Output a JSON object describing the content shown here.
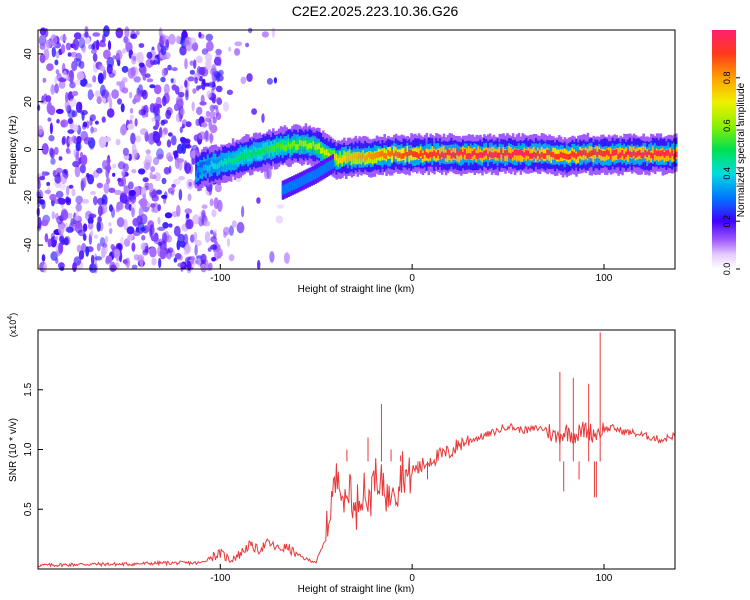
{
  "title": "C2E2.2025.223.10.36.G26",
  "chart_data": [
    {
      "type": "heatmap",
      "xlabel": "Height of straight line (km)",
      "ylabel": "Frequency (Hz)",
      "xlim": [
        -195,
        137
      ],
      "ylim": [
        -50,
        50
      ],
      "x_ticks": [
        -100,
        0,
        100
      ],
      "y_ticks": [
        -40,
        -20,
        0,
        20,
        40
      ],
      "colorbar": {
        "label": "Normalized spectral amplitude",
        "range": [
          0,
          1
        ],
        "ticks": [
          0.0,
          0.2,
          0.4,
          0.6,
          0.8
        ],
        "colors": [
          "#ffffff",
          "#d7b4ff",
          "#7a3ff5",
          "#2b00ff",
          "#0078ff",
          "#00e2e2",
          "#00e060",
          "#9af000",
          "#f0f000",
          "#ff9a00",
          "#ff2020",
          "#ff2070"
        ]
      },
      "ridge": [
        {
          "x": -113,
          "freq": -9,
          "amp": 0.3
        },
        {
          "x": -107,
          "freq": -7,
          "amp": 0.38
        },
        {
          "x": -100,
          "freq": -6,
          "amp": 0.42
        },
        {
          "x": -90,
          "freq": -3,
          "amp": 0.48
        },
        {
          "x": -80,
          "freq": -1,
          "amp": 0.5
        },
        {
          "x": -70,
          "freq": 1,
          "amp": 0.55
        },
        {
          "x": -60,
          "freq": 2,
          "amp": 0.6
        },
        {
          "x": -52,
          "freq": 2,
          "amp": 0.62
        },
        {
          "x": -46,
          "freq": -1,
          "amp": 0.66
        },
        {
          "x": -40,
          "freq": -4,
          "amp": 0.72
        },
        {
          "x": -30,
          "freq": -3,
          "amp": 0.78
        },
        {
          "x": -20,
          "freq": -3,
          "amp": 0.82
        },
        {
          "x": -10,
          "freq": -2,
          "amp": 0.86
        },
        {
          "x": 0,
          "freq": -2,
          "amp": 0.9
        },
        {
          "x": 20,
          "freq": -2,
          "amp": 0.95
        },
        {
          "x": 40,
          "freq": -2,
          "amp": 0.96
        },
        {
          "x": 60,
          "freq": -2,
          "amp": 0.96
        },
        {
          "x": 70,
          "freq": -2,
          "amp": 0.9
        },
        {
          "x": 80,
          "freq": -3,
          "amp": 0.92
        },
        {
          "x": 90,
          "freq": -2,
          "amp": 0.93
        },
        {
          "x": 110,
          "freq": -2,
          "amp": 0.95
        },
        {
          "x": 137,
          "freq": -2,
          "amp": 0.96
        }
      ],
      "ridge_branch": [
        {
          "x": -68,
          "freq": -17
        },
        {
          "x": -60,
          "freq": -14
        },
        {
          "x": -50,
          "freq": -10
        },
        {
          "x": -42,
          "freq": -6
        }
      ]
    },
    {
      "type": "line",
      "xlabel": "Height of straight line (km)",
      "ylabel": "SNR (10 * v/v)",
      "multiplier_label": "(x10",
      "multiplier_exp": "4",
      "xlim": [
        -195,
        137
      ],
      "ylim": [
        0,
        2
      ],
      "x_ticks": [
        -100,
        0,
        100
      ],
      "y_ticks": [
        0.5,
        1.0,
        1.5
      ],
      "series": [
        {
          "color": "#e83a3a",
          "points": [
            [
              -195,
              0.03
            ],
            [
              -170,
              0.04
            ],
            [
              -150,
              0.04
            ],
            [
              -130,
              0.05
            ],
            [
              -110,
              0.05
            ],
            [
              -105,
              0.1
            ],
            [
              -100,
              0.13
            ],
            [
              -95,
              0.08
            ],
            [
              -90,
              0.12
            ],
            [
              -85,
              0.2
            ],
            [
              -80,
              0.16
            ],
            [
              -75,
              0.22
            ],
            [
              -70,
              0.17
            ],
            [
              -65,
              0.18
            ],
            [
              -60,
              0.12
            ],
            [
              -55,
              0.08
            ],
            [
              -50,
              0.06
            ],
            [
              -45,
              0.25
            ],
            [
              -42,
              0.6
            ],
            [
              -40,
              0.7
            ],
            [
              -38,
              0.85
            ],
            [
              -35,
              0.5
            ],
            [
              -32,
              0.75
            ],
            [
              -30,
              0.4
            ],
            [
              -28,
              0.6
            ],
            [
              -25,
              0.7
            ],
            [
              -22,
              0.5
            ],
            [
              -20,
              0.9
            ],
            [
              -18,
              0.6
            ],
            [
              -15,
              0.75
            ],
            [
              -12,
              0.55
            ],
            [
              -10,
              0.8
            ],
            [
              -8,
              0.65
            ],
            [
              -5,
              0.85
            ],
            [
              -2,
              0.75
            ],
            [
              0,
              0.82
            ],
            [
              5,
              0.86
            ],
            [
              10,
              0.92
            ],
            [
              15,
              0.95
            ],
            [
              20,
              0.98
            ],
            [
              25,
              1.05
            ],
            [
              30,
              1.08
            ],
            [
              35,
              1.1
            ],
            [
              40,
              1.13
            ],
            [
              45,
              1.16
            ],
            [
              50,
              1.2
            ],
            [
              55,
              1.17
            ],
            [
              60,
              1.16
            ],
            [
              65,
              1.18
            ],
            [
              70,
              1.17
            ],
            [
              75,
              1.1
            ],
            [
              80,
              1.15
            ],
            [
              85,
              1.12
            ],
            [
              90,
              1.17
            ],
            [
              95,
              1.13
            ],
            [
              100,
              1.17
            ],
            [
              105,
              1.18
            ],
            [
              110,
              1.15
            ],
            [
              115,
              1.14
            ],
            [
              120,
              1.12
            ],
            [
              125,
              1.1
            ],
            [
              130,
              1.08
            ],
            [
              137,
              1.12
            ]
          ],
          "spikes": [
            [
              -34,
              1.0
            ],
            [
              -28,
              0.9
            ],
            [
              -23,
              1.1
            ],
            [
              -16,
              1.38
            ],
            [
              -11,
              1.0
            ],
            [
              -6,
              0.95
            ],
            [
              3,
              0.8
            ],
            [
              8,
              0.75
            ],
            [
              77,
              1.65
            ],
            [
              79,
              0.65
            ],
            [
              84,
              1.6
            ],
            [
              87,
              0.75
            ],
            [
              92,
              1.55
            ],
            [
              95,
              0.6
            ],
            [
              98,
              1.98
            ],
            [
              96,
              0.6
            ]
          ]
        }
      ]
    }
  ]
}
